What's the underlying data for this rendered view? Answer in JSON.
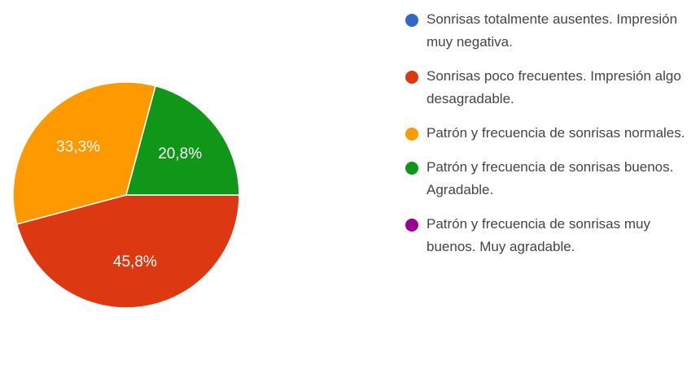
{
  "chart_data": {
    "type": "pie",
    "slices": [
      {
        "label": "Sonrisas totalmente ausentes. Impresión muy negativa.",
        "value": 0,
        "color": "#3366cc",
        "display": ""
      },
      {
        "label": "Sonrisas poco frecuentes. Impresión algo desagradable.",
        "value": 45.8,
        "color": "#dc3912",
        "display": "45,8%"
      },
      {
        "label": "Patrón y frecuencia de sonrisas normales.",
        "value": 33.3,
        "color": "#ff9900",
        "display": "33,3%"
      },
      {
        "label": "Patrón y frecuencia de sonrisas buenos. Agradable.",
        "value": 20.8,
        "color": "#109618",
        "display": "20,8%"
      },
      {
        "label": "Patrón y frecuencia de sonrisas muy buenos. Muy agradable.",
        "value": 0,
        "color": "#990099",
        "display": ""
      }
    ],
    "legend_position": "right"
  }
}
